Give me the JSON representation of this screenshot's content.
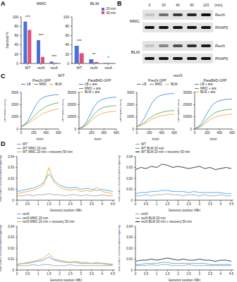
{
  "panel_labels": [
    "A",
    "B",
    "C",
    "D"
  ],
  "c_headers": [
    "WT",
    "recN"
  ],
  "blot": {
    "times": [
      0,
      20,
      40,
      60,
      120
    ],
    "unit": "(min)",
    "blots": [
      {
        "condition": "MMC",
        "rows": [
          {
            "label": "RecN",
            "intensity": [
              0.15,
              0.55,
              0.8,
              0.9,
              1.0
            ]
          },
          {
            "label": "RNAPβ",
            "intensity": [
              1,
              1,
              1,
              1,
              1
            ]
          }
        ]
      },
      {
        "condition": "BLM",
        "rows": [
          {
            "label": "RecN",
            "intensity": [
              0.15,
              0.45,
              0.7,
              0.85,
              0.95
            ]
          },
          {
            "label": "RNAPβ",
            "intensity": [
              1,
              1,
              1,
              1,
              1
            ]
          }
        ]
      }
    ]
  },
  "chart_data": [
    {
      "type": "bar",
      "title": "MMC",
      "y_label": "Survival %",
      "categories": [
        "WT",
        "recN",
        "recA"
      ],
      "series": [
        {
          "color": "#4a6fd6",
          "values": [
            90,
            50,
            4
          ]
        },
        {
          "color": "#e0507a",
          "values": [
            72,
            14,
            1
          ]
        }
      ],
      "ylim": [
        0,
        100
      ],
      "yticks": [
        0,
        20,
        40,
        60,
        80,
        100
      ],
      "annotations": [
        {
          "category": "WT",
          "text": "***"
        },
        {
          "category": "recN",
          "text": "***"
        },
        {
          "category": "recA",
          "text": "***"
        }
      ]
    },
    {
      "type": "bar",
      "title": "BLM",
      "categories": [
        "WT",
        "recN",
        "recA"
      ],
      "series": [
        {
          "name": "20 min",
          "color": "#4a6fd6",
          "values": [
            38,
            9,
            1
          ]
        },
        {
          "name": "40 min",
          "color": "#e0507a",
          "values": [
            22,
            3,
            0.5
          ]
        }
      ],
      "ylim": [
        0,
        100
      ],
      "yticks": [
        0,
        20,
        40,
        60,
        80,
        100
      ],
      "legend": "top-right",
      "annotations": [
        {
          "category": "WT",
          "text": "***"
        },
        {
          "category": "recN",
          "text": "**"
        },
        {
          "category": "recA",
          "text": "*"
        }
      ]
    },
    {
      "type": "line",
      "title": "PrecN-GFP",
      "x_label": "(min)",
      "y_label": "GFP/OD600 (a.u.)",
      "x": [
        0,
        60,
        120,
        180,
        240,
        300,
        360,
        420,
        480,
        540,
        600
      ],
      "xlim": [
        0,
        600
      ],
      "xticks": [
        0,
        200,
        400,
        600
      ],
      "ylim": [
        0,
        3000
      ],
      "yticks": [
        0,
        1000,
        2000,
        3000
      ],
      "legend": "top",
      "series": [
        {
          "name": "LB",
          "color": "#2f7fd8",
          "values": [
            200,
            400,
            800,
            1400,
            2000,
            2400,
            2600,
            2700,
            2750,
            2800,
            2800
          ]
        },
        {
          "name": "MMC",
          "color": "#3aa655",
          "values": [
            200,
            350,
            600,
            900,
            1200,
            1500,
            1700,
            1900,
            2000,
            2100,
            2150
          ]
        },
        {
          "name": "BLM",
          "color": "#f0a030",
          "values": [
            200,
            300,
            500,
            700,
            900,
            1100,
            1300,
            1400,
            1500,
            1600,
            1650
          ]
        }
      ]
    },
    {
      "type": "line",
      "title": "ParaBAD-GFP",
      "x_label": "(min)",
      "y_label": "GFP/OD600 (a.u.)",
      "x": [
        0,
        60,
        120,
        180,
        240,
        300,
        360,
        420,
        480,
        540,
        600
      ],
      "xlim": [
        0,
        600
      ],
      "xticks": [
        0,
        200,
        400,
        600
      ],
      "ylim": [
        0,
        30000
      ],
      "yticks": [
        0,
        10000,
        20000,
        30000
      ],
      "legend": "top",
      "series": [
        {
          "name": "LB + ara",
          "color": "#2f7fd8",
          "values": [
            500,
            2000,
            6000,
            12000,
            18000,
            22000,
            24000,
            25000,
            25500,
            26000,
            26000
          ]
        },
        {
          "name": "MMC + ara",
          "color": "#3aa655",
          "values": [
            500,
            1500,
            4000,
            8000,
            12000,
            15000,
            17000,
            18000,
            18500,
            19000,
            19000
          ]
        },
        {
          "name": "BLM + ara",
          "color": "#f0a030",
          "values": [
            500,
            1200,
            3000,
            6000,
            9000,
            11000,
            12500,
            13500,
            14000,
            14500,
            14500
          ]
        }
      ]
    },
    {
      "type": "line",
      "title": "PrecN-GFP",
      "x_label": "(min)",
      "y_label": "GFP/OD600 (a.u.)",
      "x": [
        0,
        60,
        120,
        180,
        240,
        300,
        360,
        420,
        480,
        540,
        600
      ],
      "xlim": [
        0,
        600
      ],
      "xticks": [
        0,
        200,
        400,
        600
      ],
      "ylim": [
        0,
        3000
      ],
      "yticks": [
        0,
        1000,
        2000,
        3000
      ],
      "legend": "top",
      "series": [
        {
          "name": "LB",
          "color": "#2f7fd8",
          "values": [
            200,
            400,
            900,
            1500,
            2100,
            2500,
            2700,
            2800,
            2850,
            2900,
            2900
          ]
        },
        {
          "name": "MMC",
          "color": "#3aa655",
          "values": [
            200,
            300,
            500,
            800,
            1000,
            1200,
            1300,
            1400,
            1450,
            1500,
            1500
          ]
        },
        {
          "name": "BLM",
          "color": "#f0a030",
          "values": [
            200,
            300,
            450,
            600,
            800,
            950,
            1050,
            1100,
            1150,
            1200,
            1200
          ]
        }
      ]
    },
    {
      "type": "line",
      "title": "ParaBAD-GFP",
      "x_label": "(min)",
      "y_label": "GFP/OD600 (a.u.)",
      "x": [
        0,
        60,
        120,
        180,
        240,
        300,
        360,
        420,
        480,
        540,
        600
      ],
      "xlim": [
        0,
        600
      ],
      "xticks": [
        0,
        200,
        400,
        600
      ],
      "ylim": [
        0,
        30000
      ],
      "yticks": [
        0,
        10000,
        20000,
        30000
      ],
      "legend": "top",
      "series": [
        {
          "name": "LB + ara",
          "color": "#2f7fd8",
          "values": [
            500,
            1800,
            5500,
            11000,
            16500,
            20500,
            22500,
            23500,
            24000,
            24500,
            24500
          ]
        },
        {
          "name": "MMC + ara",
          "color": "#3aa655",
          "values": [
            500,
            1300,
            3500,
            7000,
            10000,
            12500,
            14000,
            15000,
            15500,
            16000,
            16000
          ]
        },
        {
          "name": "BLM + ara",
          "color": "#f0a030",
          "values": [
            500,
            1000,
            2500,
            5000,
            7500,
            9000,
            10500,
            11000,
            11500,
            12000,
            12000
          ]
        }
      ]
    },
    {
      "type": "line",
      "x_label": "Genomic position (Mb)",
      "y_label": "Inter sisters recombination frequency",
      "x": [
        0,
        0.25,
        0.5,
        0.75,
        1,
        1.25,
        1.5,
        1.75,
        2,
        2.25,
        2.5,
        2.75,
        3,
        3.25,
        3.5,
        3.75,
        4,
        4.25,
        4.5
      ],
      "xlim": [
        0,
        4.6
      ],
      "xticks": [
        0,
        0.5,
        1,
        1.5,
        2,
        2.5,
        3,
        3.5,
        4,
        4.5
      ],
      "ylim": [
        0,
        0.04
      ],
      "yticks": [
        0,
        0.01,
        0.02,
        0.03,
        0.04
      ],
      "legend": "top-left",
      "series": [
        {
          "name": "WT",
          "color": "#9a9a9a",
          "values": [
            0.004,
            0.004,
            0.005,
            0.004,
            0.005,
            0.005,
            0.006,
            0.005,
            0.005,
            0.004,
            0.005,
            0.005,
            0.004,
            0.005,
            0.004,
            0.004,
            0.005,
            0.004,
            0.004
          ]
        },
        {
          "name": "WT MMC 20 min",
          "color": "#2a9df4",
          "values": [
            0.008,
            0.009,
            0.01,
            0.011,
            0.013,
            0.016,
            0.024,
            0.018,
            0.014,
            0.012,
            0.011,
            0.012,
            0.01,
            0.011,
            0.01,
            0.009,
            0.01,
            0.009,
            0.008
          ]
        },
        {
          "name": "WT MMC 20 min + recovery 50 min",
          "color": "#f39c12",
          "values": [
            0.006,
            0.007,
            0.008,
            0.009,
            0.011,
            0.014,
            0.03,
            0.016,
            0.012,
            0.01,
            0.009,
            0.01,
            0.008,
            0.009,
            0.008,
            0.012,
            0.008,
            0.007,
            0.006
          ]
        }
      ]
    },
    {
      "type": "line",
      "x_label": "Genomic position (Mb)",
      "y_label": "Inter sisters recombination frequency",
      "x": [
        0,
        0.25,
        0.5,
        0.75,
        1,
        1.25,
        1.5,
        1.75,
        2,
        2.25,
        2.5,
        2.75,
        3,
        3.25,
        3.5,
        3.75,
        4,
        4.25,
        4.5
      ],
      "xlim": [
        0,
        4.6
      ],
      "xticks": [
        0,
        0.5,
        1,
        1.5,
        2,
        2.5,
        3,
        3.5,
        4,
        4.5
      ],
      "ylim": [
        0,
        0.04
      ],
      "yticks": [
        0,
        0.01,
        0.02,
        0.03,
        0.04
      ],
      "legend": "top-left",
      "series": [
        {
          "name": "WT",
          "color": "#9a9a9a",
          "values": [
            0.004,
            0.004,
            0.005,
            0.004,
            0.005,
            0.005,
            0.006,
            0.005,
            0.005,
            0.004,
            0.005,
            0.005,
            0.004,
            0.005,
            0.004,
            0.004,
            0.005,
            0.004,
            0.004
          ]
        },
        {
          "name": "WT BLM 20 min",
          "color": "#2a9df4",
          "values": [
            0.006,
            0.007,
            0.007,
            0.008,
            0.008,
            0.009,
            0.009,
            0.008,
            0.008,
            0.008,
            0.007,
            0.008,
            0.007,
            0.007,
            0.007,
            0.007,
            0.007,
            0.006,
            0.006
          ]
        },
        {
          "name": "WT BLM 20 min + recovery 50 min",
          "color": "#111111",
          "values": [
            0.028,
            0.03,
            0.029,
            0.031,
            0.03,
            0.033,
            0.032,
            0.03,
            0.031,
            0.03,
            0.029,
            0.03,
            0.031,
            0.029,
            0.03,
            0.028,
            0.029,
            0.03,
            0.029
          ]
        }
      ]
    },
    {
      "type": "line",
      "x_label": "Genomic position (Mb)",
      "y_label": "Inter sisters recombination frequency",
      "x": [
        0,
        0.25,
        0.5,
        0.75,
        1,
        1.25,
        1.5,
        1.75,
        2,
        2.25,
        2.5,
        2.75,
        3,
        3.25,
        3.5,
        3.75,
        4,
        4.25,
        4.5
      ],
      "xlim": [
        0,
        4.6
      ],
      "xticks": [
        0,
        0.5,
        1,
        1.5,
        2,
        2.5,
        3,
        3.5,
        4,
        4.5
      ],
      "ylim": [
        0,
        0.04
      ],
      "yticks": [
        0,
        0.01,
        0.02,
        0.03,
        0.04
      ],
      "legend": "top-left",
      "series": [
        {
          "name": "recN",
          "color": "#9a9a9a",
          "values": [
            0.004,
            0.004,
            0.004,
            0.005,
            0.004,
            0.005,
            0.005,
            0.004,
            0.004,
            0.004,
            0.005,
            0.004,
            0.004,
            0.004,
            0.004,
            0.004,
            0.004,
            0.004,
            0.004
          ]
        },
        {
          "name": "recN MMC 20 min",
          "color": "#2a9df4",
          "values": [
            0.005,
            0.006,
            0.006,
            0.007,
            0.008,
            0.009,
            0.012,
            0.009,
            0.008,
            0.007,
            0.007,
            0.007,
            0.006,
            0.006,
            0.006,
            0.006,
            0.006,
            0.005,
            0.005
          ]
        },
        {
          "name": "recN MMC 20 min + recovery 50 min",
          "color": "#f39c12",
          "values": [
            0.005,
            0.006,
            0.007,
            0.008,
            0.009,
            0.011,
            0.015,
            0.01,
            0.009,
            0.008,
            0.007,
            0.008,
            0.007,
            0.007,
            0.006,
            0.007,
            0.006,
            0.006,
            0.005
          ]
        }
      ]
    },
    {
      "type": "line",
      "x_label": "Genomic position (Mb)",
      "y_label": "Inter sisters recombination frequency",
      "x": [
        0,
        0.25,
        0.5,
        0.75,
        1,
        1.25,
        1.5,
        1.75,
        2,
        2.25,
        2.5,
        2.75,
        3,
        3.25,
        3.5,
        3.75,
        4,
        4.25,
        4.5
      ],
      "xlim": [
        0,
        4.6
      ],
      "xticks": [
        0,
        0.5,
        1,
        1.5,
        2,
        2.5,
        3,
        3.5,
        4,
        4.5
      ],
      "ylim": [
        0,
        0.04
      ],
      "yticks": [
        0,
        0.01,
        0.02,
        0.03,
        0.04
      ],
      "legend": "top-left",
      "series": [
        {
          "name": "recN",
          "color": "#9a9a9a",
          "values": [
            0.004,
            0.004,
            0.004,
            0.005,
            0.004,
            0.005,
            0.005,
            0.004,
            0.004,
            0.004,
            0.005,
            0.004,
            0.004,
            0.004,
            0.004,
            0.004,
            0.004,
            0.004,
            0.004
          ]
        },
        {
          "name": "recN BLM 20 min",
          "color": "#2a9df4",
          "values": [
            0.005,
            0.005,
            0.006,
            0.006,
            0.006,
            0.007,
            0.007,
            0.006,
            0.006,
            0.006,
            0.006,
            0.006,
            0.006,
            0.006,
            0.005,
            0.005,
            0.005,
            0.005,
            0.005
          ]
        },
        {
          "name": "recN BLM 20 min + recovery 50 min",
          "color": "#111111",
          "values": [
            0.008,
            0.009,
            0.009,
            0.01,
            0.009,
            0.01,
            0.011,
            0.01,
            0.009,
            0.01,
            0.009,
            0.009,
            0.01,
            0.009,
            0.009,
            0.008,
            0.009,
            0.009,
            0.008
          ]
        }
      ]
    }
  ]
}
